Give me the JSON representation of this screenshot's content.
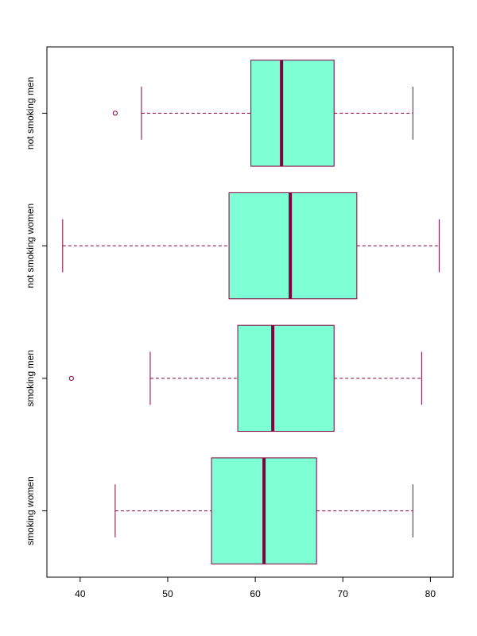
{
  "chart_data": {
    "type": "boxplot",
    "orientation": "horizontal",
    "title": "",
    "xlabel": "",
    "ylabel": "",
    "xlim": [
      36.2,
      82.6
    ],
    "x_ticks": [
      40,
      50,
      60,
      70,
      80
    ],
    "box_color": "#7FFFD4",
    "line_color": "#800040",
    "categories": [
      "smoking women",
      "smoking men",
      "not smoking women",
      "not smoking men"
    ],
    "series": [
      {
        "category": "smoking women",
        "whisker_low": 44,
        "q1": 55,
        "median": 61,
        "q3": 67,
        "whisker_high": 78,
        "outliers": []
      },
      {
        "category": "smoking men",
        "whisker_low": 48,
        "q1": 58,
        "median": 62,
        "q3": 69,
        "whisker_high": 79,
        "outliers": [
          39
        ]
      },
      {
        "category": "not smoking women",
        "whisker_low": 38,
        "q1": 57,
        "median": 64,
        "q3": 71.6,
        "whisker_high": 81,
        "outliers": []
      },
      {
        "category": "not smoking men",
        "whisker_low": 47,
        "q1": 59.5,
        "median": 63,
        "q3": 69,
        "whisker_high": 78,
        "outliers": [
          44
        ]
      }
    ],
    "grid": false,
    "legend": "none"
  }
}
